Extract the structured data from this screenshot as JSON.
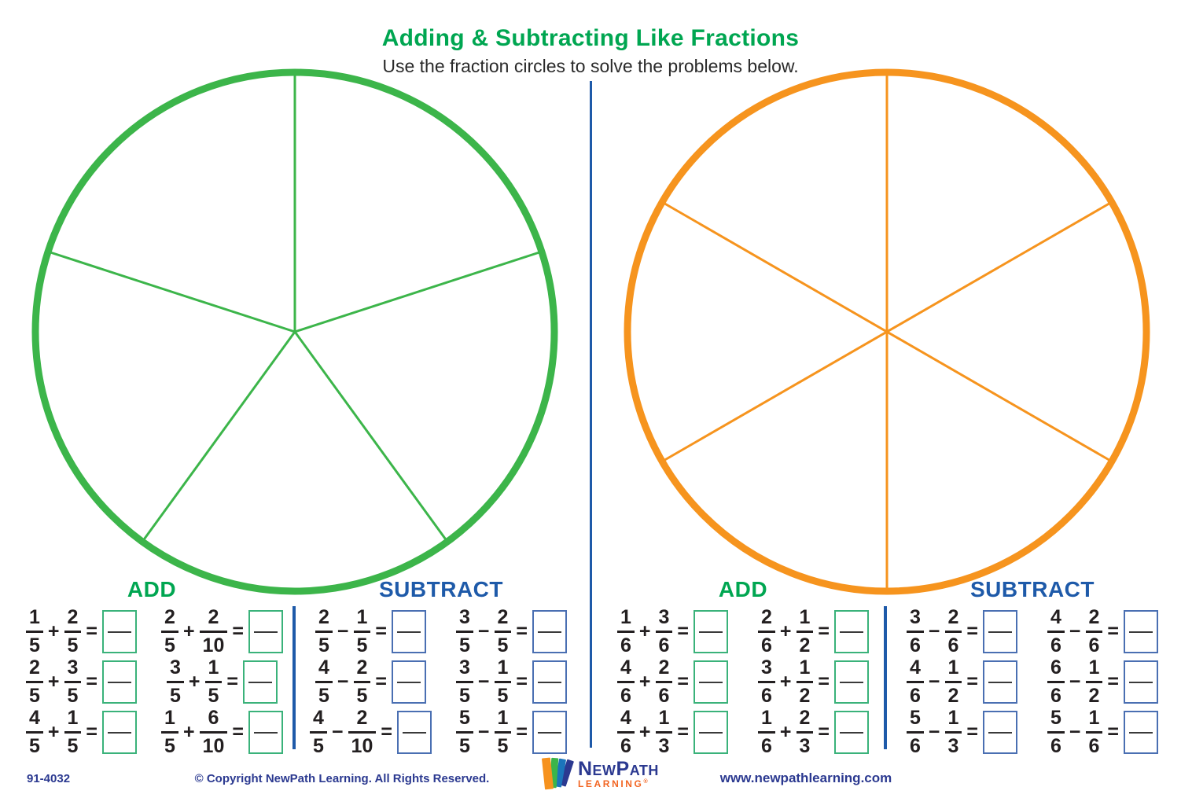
{
  "header": {
    "title": "Adding & Subtracting Like Fractions",
    "subtitle": "Use the fraction circles to solve the problems below."
  },
  "symbols": {
    "equals": "="
  },
  "circles": [
    {
      "name": "fifths-circle",
      "divisions": 5,
      "color": "#3CB54A"
    },
    {
      "name": "sixths-circle",
      "divisions": 6,
      "color": "#F6941E"
    }
  ],
  "accent_colors": {
    "heading_green": "#00A651",
    "heading_blue": "#1E5AA9",
    "footer_navy": "#2B3990",
    "logo_orange": "#F26522"
  },
  "panels": [
    {
      "add_label": "ADD",
      "subtract_label": "SUBTRACT",
      "add_problems": [
        {
          "n1": "1",
          "d1": "5",
          "op": "+",
          "n2": "2",
          "d2": "5"
        },
        {
          "n1": "2",
          "d1": "5",
          "op": "+",
          "n2": "2",
          "d2": "10"
        },
        {
          "n1": "2",
          "d1": "5",
          "op": "+",
          "n2": "3",
          "d2": "5"
        },
        {
          "n1": "3",
          "d1": "5",
          "op": "+",
          "n2": "1",
          "d2": "5"
        },
        {
          "n1": "4",
          "d1": "5",
          "op": "+",
          "n2": "1",
          "d2": "5"
        },
        {
          "n1": "1",
          "d1": "5",
          "op": "+",
          "n2": "6",
          "d2": "10"
        }
      ],
      "subtract_problems": [
        {
          "n1": "2",
          "d1": "5",
          "op": "−",
          "n2": "1",
          "d2": "5"
        },
        {
          "n1": "3",
          "d1": "5",
          "op": "−",
          "n2": "2",
          "d2": "5"
        },
        {
          "n1": "4",
          "d1": "5",
          "op": "−",
          "n2": "2",
          "d2": "5"
        },
        {
          "n1": "3",
          "d1": "5",
          "op": "−",
          "n2": "1",
          "d2": "5"
        },
        {
          "n1": "4",
          "d1": "5",
          "op": "−",
          "n2": "2",
          "d2": "10"
        },
        {
          "n1": "5",
          "d1": "5",
          "op": "−",
          "n2": "1",
          "d2": "5"
        }
      ]
    },
    {
      "add_label": "ADD",
      "subtract_label": "SUBTRACT",
      "add_problems": [
        {
          "n1": "1",
          "d1": "6",
          "op": "+",
          "n2": "3",
          "d2": "6"
        },
        {
          "n1": "2",
          "d1": "6",
          "op": "+",
          "n2": "1",
          "d2": "2"
        },
        {
          "n1": "4",
          "d1": "6",
          "op": "+",
          "n2": "2",
          "d2": "6"
        },
        {
          "n1": "3",
          "d1": "6",
          "op": "+",
          "n2": "1",
          "d2": "2"
        },
        {
          "n1": "4",
          "d1": "6",
          "op": "+",
          "n2": "1",
          "d2": "3"
        },
        {
          "n1": "1",
          "d1": "6",
          "op": "+",
          "n2": "2",
          "d2": "3"
        }
      ],
      "subtract_problems": [
        {
          "n1": "3",
          "d1": "6",
          "op": "−",
          "n2": "2",
          "d2": "6"
        },
        {
          "n1": "4",
          "d1": "6",
          "op": "−",
          "n2": "2",
          "d2": "6"
        },
        {
          "n1": "4",
          "d1": "6",
          "op": "−",
          "n2": "1",
          "d2": "2"
        },
        {
          "n1": "6",
          "d1": "6",
          "op": "−",
          "n2": "1",
          "d2": "2"
        },
        {
          "n1": "5",
          "d1": "6",
          "op": "−",
          "n2": "1",
          "d2": "3"
        },
        {
          "n1": "5",
          "d1": "6",
          "op": "−",
          "n2": "1",
          "d2": "6"
        }
      ]
    }
  ],
  "footer": {
    "item_number": "91-4032",
    "copyright": "© Copyright NewPath Learning. All Rights Reserved.",
    "logo": {
      "name": "NewPath",
      "sub": "LEARNING",
      "trademark": "®"
    },
    "website": "www.newpathlearning.com"
  }
}
